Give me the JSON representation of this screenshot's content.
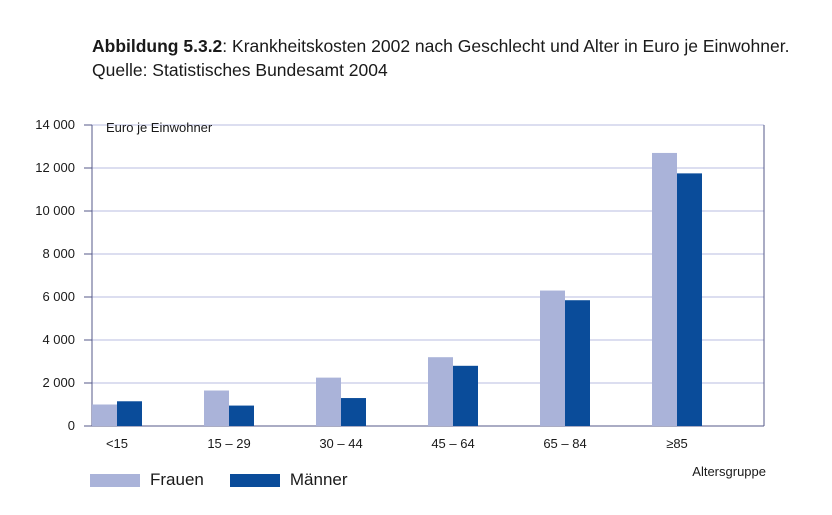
{
  "caption": {
    "label": "Abbildung 5.3.2",
    "text": ": Krankheitskosten 2002 nach Geschlecht und Alter in Euro je Einwohner. Quelle: Statistisches Bundesamt 2004"
  },
  "colors": {
    "frauen": "#aab3d9",
    "maenner": "#0a4c9a",
    "grid": "#b9bde0",
    "axis": "#555a8a"
  },
  "chart_data": {
    "type": "bar",
    "ylabel": "Euro je Einwohner",
    "xlabel": "Altersgruppe",
    "categories": [
      "<15",
      "15 – 29",
      "30 – 44",
      "45 – 64",
      "65 – 84",
      "≥85"
    ],
    "series": [
      {
        "name": "Frauen",
        "values": [
          1000,
          1650,
          2250,
          3200,
          6300,
          12700
        ]
      },
      {
        "name": "Männer",
        "values": [
          1150,
          950,
          1300,
          2800,
          5850,
          11750
        ]
      }
    ],
    "ylim": [
      0,
      14000
    ],
    "yticks": [
      0,
      2000,
      4000,
      6000,
      8000,
      10000,
      12000,
      14000
    ],
    "ytick_labels": [
      "0",
      "2 000",
      "4 000",
      "6 000",
      "8 000",
      "10 000",
      "12 000",
      "14 000"
    ],
    "grid": true,
    "legend": "bottom-left"
  }
}
